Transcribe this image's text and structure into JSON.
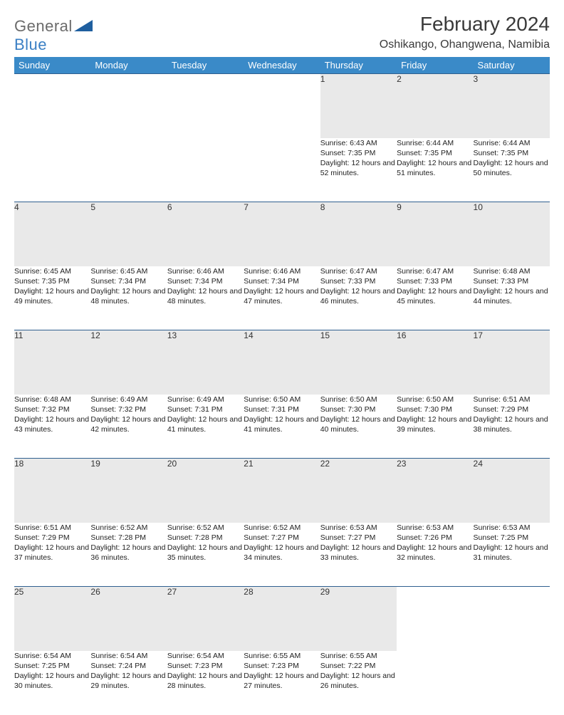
{
  "logo": {
    "general": "General",
    "blue": "Blue"
  },
  "title": "February 2024",
  "location": "Oshikango, Ohangwena, Namibia",
  "colors": {
    "header_bg": "#3a8ac8",
    "header_text": "#ffffff",
    "daynum_bg": "#e9e9e9",
    "rule": "#2f5f8f",
    "logo_gray": "#6b6b6b",
    "logo_blue": "#3a7fc4"
  },
  "weekdays": [
    "Sunday",
    "Monday",
    "Tuesday",
    "Wednesday",
    "Thursday",
    "Friday",
    "Saturday"
  ],
  "weeks": [
    [
      null,
      null,
      null,
      null,
      {
        "d": "1",
        "sr": "6:43 AM",
        "ss": "7:35 PM",
        "dl": "12 hours and 52 minutes."
      },
      {
        "d": "2",
        "sr": "6:44 AM",
        "ss": "7:35 PM",
        "dl": "12 hours and 51 minutes."
      },
      {
        "d": "3",
        "sr": "6:44 AM",
        "ss": "7:35 PM",
        "dl": "12 hours and 50 minutes."
      }
    ],
    [
      {
        "d": "4",
        "sr": "6:45 AM",
        "ss": "7:35 PM",
        "dl": "12 hours and 49 minutes."
      },
      {
        "d": "5",
        "sr": "6:45 AM",
        "ss": "7:34 PM",
        "dl": "12 hours and 48 minutes."
      },
      {
        "d": "6",
        "sr": "6:46 AM",
        "ss": "7:34 PM",
        "dl": "12 hours and 48 minutes."
      },
      {
        "d": "7",
        "sr": "6:46 AM",
        "ss": "7:34 PM",
        "dl": "12 hours and 47 minutes."
      },
      {
        "d": "8",
        "sr": "6:47 AM",
        "ss": "7:33 PM",
        "dl": "12 hours and 46 minutes."
      },
      {
        "d": "9",
        "sr": "6:47 AM",
        "ss": "7:33 PM",
        "dl": "12 hours and 45 minutes."
      },
      {
        "d": "10",
        "sr": "6:48 AM",
        "ss": "7:33 PM",
        "dl": "12 hours and 44 minutes."
      }
    ],
    [
      {
        "d": "11",
        "sr": "6:48 AM",
        "ss": "7:32 PM",
        "dl": "12 hours and 43 minutes."
      },
      {
        "d": "12",
        "sr": "6:49 AM",
        "ss": "7:32 PM",
        "dl": "12 hours and 42 minutes."
      },
      {
        "d": "13",
        "sr": "6:49 AM",
        "ss": "7:31 PM",
        "dl": "12 hours and 41 minutes."
      },
      {
        "d": "14",
        "sr": "6:50 AM",
        "ss": "7:31 PM",
        "dl": "12 hours and 41 minutes."
      },
      {
        "d": "15",
        "sr": "6:50 AM",
        "ss": "7:30 PM",
        "dl": "12 hours and 40 minutes."
      },
      {
        "d": "16",
        "sr": "6:50 AM",
        "ss": "7:30 PM",
        "dl": "12 hours and 39 minutes."
      },
      {
        "d": "17",
        "sr": "6:51 AM",
        "ss": "7:29 PM",
        "dl": "12 hours and 38 minutes."
      }
    ],
    [
      {
        "d": "18",
        "sr": "6:51 AM",
        "ss": "7:29 PM",
        "dl": "12 hours and 37 minutes."
      },
      {
        "d": "19",
        "sr": "6:52 AM",
        "ss": "7:28 PM",
        "dl": "12 hours and 36 minutes."
      },
      {
        "d": "20",
        "sr": "6:52 AM",
        "ss": "7:28 PM",
        "dl": "12 hours and 35 minutes."
      },
      {
        "d": "21",
        "sr": "6:52 AM",
        "ss": "7:27 PM",
        "dl": "12 hours and 34 minutes."
      },
      {
        "d": "22",
        "sr": "6:53 AM",
        "ss": "7:27 PM",
        "dl": "12 hours and 33 minutes."
      },
      {
        "d": "23",
        "sr": "6:53 AM",
        "ss": "7:26 PM",
        "dl": "12 hours and 32 minutes."
      },
      {
        "d": "24",
        "sr": "6:53 AM",
        "ss": "7:25 PM",
        "dl": "12 hours and 31 minutes."
      }
    ],
    [
      {
        "d": "25",
        "sr": "6:54 AM",
        "ss": "7:25 PM",
        "dl": "12 hours and 30 minutes."
      },
      {
        "d": "26",
        "sr": "6:54 AM",
        "ss": "7:24 PM",
        "dl": "12 hours and 29 minutes."
      },
      {
        "d": "27",
        "sr": "6:54 AM",
        "ss": "7:23 PM",
        "dl": "12 hours and 28 minutes."
      },
      {
        "d": "28",
        "sr": "6:55 AM",
        "ss": "7:23 PM",
        "dl": "12 hours and 27 minutes."
      },
      {
        "d": "29",
        "sr": "6:55 AM",
        "ss": "7:22 PM",
        "dl": "12 hours and 26 minutes."
      },
      null,
      null
    ]
  ],
  "labels": {
    "sunrise": "Sunrise:",
    "sunset": "Sunset:",
    "daylight": "Daylight:"
  }
}
